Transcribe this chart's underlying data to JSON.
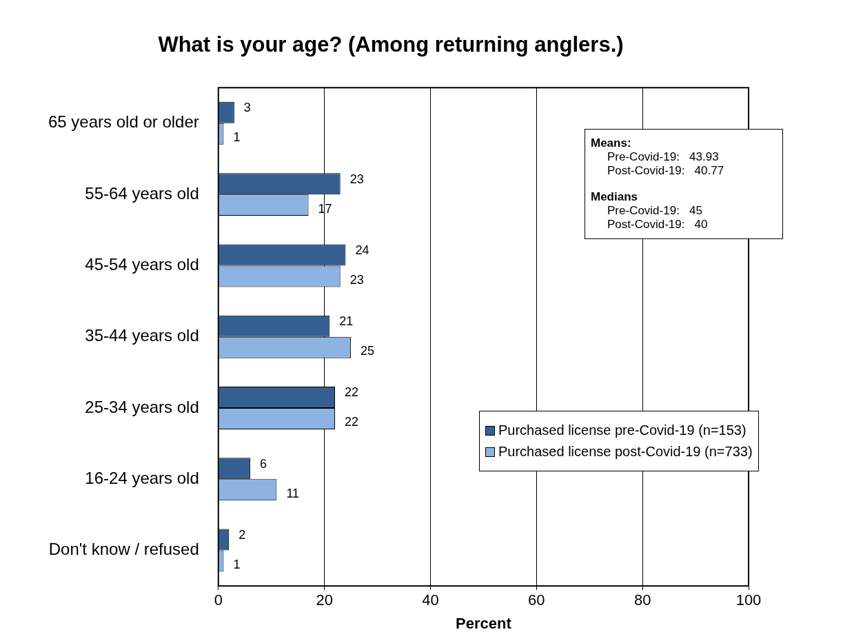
{
  "chart_data": {
    "type": "bar",
    "orientation": "horizontal",
    "title": "What is your age? (Among returning anglers.)",
    "xlabel": "Percent",
    "categories": [
      "65 years old or older",
      "55-64 years old",
      "45-54 years old",
      "35-44 years old",
      "25-34 years old",
      "16-24 years old",
      "Don't know / refused"
    ],
    "series": [
      {
        "name": "Purchased license pre-Covid-19 (n=153)",
        "color": "#355f91",
        "values": [
          3,
          23,
          24,
          21,
          22,
          6,
          2
        ]
      },
      {
        "name": "Purchased license post-Covid-19 (n=733)",
        "color": "#8db3e2",
        "values": [
          1,
          17,
          23,
          25,
          22,
          11,
          1
        ]
      }
    ],
    "xlim": [
      0,
      100
    ],
    "xticks": [
      0,
      20,
      40,
      60,
      80,
      100
    ],
    "grid": "x",
    "legend": "bottom right",
    "data_labels": true,
    "annotations": [
      "Means:",
      "Pre-Covid-19:   43.93",
      "Post-Covid-19:   40.77",
      "Medians",
      "Pre-Covid-19:   45",
      "Post-Covid-19:   40"
    ]
  }
}
